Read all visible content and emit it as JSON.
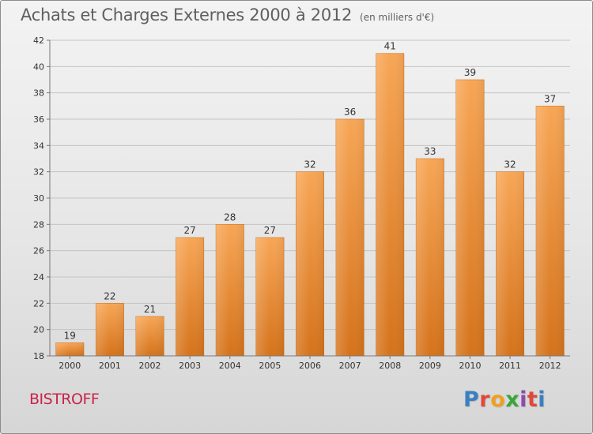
{
  "header": {
    "title": "Achats et Charges Externes 2000 à 2012",
    "subtitle": "(en milliers d'€)"
  },
  "footer": {
    "commune": "BISTROFF",
    "logo": {
      "text": "Proxiti",
      "colors": [
        "#3a7fc1",
        "#e0483a",
        "#f0a020",
        "#3aa63a",
        "#8f4bb0",
        "#e0483a",
        "#3a7fc1"
      ]
    }
  },
  "colors": {
    "bar_top": "#f7a656",
    "bar_bottom": "#d5731b",
    "title": "#5f5f5f",
    "commune": "#c8244a"
  },
  "chart_data": {
    "type": "bar",
    "categories": [
      "2000",
      "2001",
      "2002",
      "2003",
      "2004",
      "2005",
      "2006",
      "2007",
      "2008",
      "2009",
      "2010",
      "2011",
      "2012"
    ],
    "values": [
      19,
      22,
      21,
      27,
      28,
      27,
      32,
      36,
      41,
      33,
      39,
      32,
      37
    ],
    "data_labels": [
      "19",
      "22",
      "21",
      "27",
      "28",
      "27",
      "32",
      "36",
      "41",
      "33",
      "39",
      "32",
      "37"
    ],
    "ylim": [
      18,
      42
    ],
    "yticks": [
      18,
      20,
      22,
      24,
      26,
      28,
      30,
      32,
      34,
      36,
      38,
      40,
      42
    ],
    "ytick_labels": [
      "18",
      "20",
      "22",
      "24",
      "26",
      "28",
      "30",
      "32",
      "34",
      "36",
      "38",
      "40",
      "42"
    ],
    "grid": true
  }
}
